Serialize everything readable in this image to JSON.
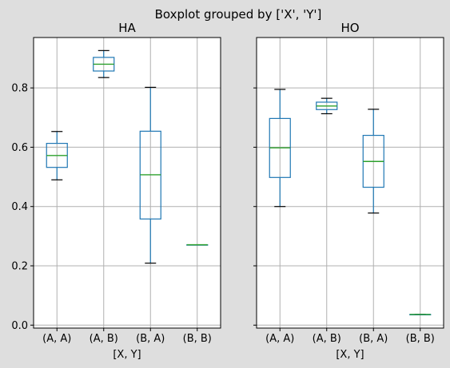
{
  "chart_data": {
    "type": "box",
    "suptitle": "Boxplot grouped by ['X', 'Y']",
    "ylim": [
      -0.01,
      0.97
    ],
    "yticks": [
      "0.0",
      "0.2",
      "0.4",
      "0.6",
      "0.8"
    ],
    "ytick_values": [
      0.0,
      0.2,
      0.4,
      0.6,
      0.8
    ],
    "grid": true,
    "shared_y": true,
    "colors": {
      "box": "#1f77b4",
      "median": "#2ca02c",
      "cap": "#000000",
      "grid": "#b0b0b0",
      "background": "#dedede",
      "axes": "#ffffff"
    },
    "panels": [
      {
        "title": "HA",
        "xlabel": "[X, Y]",
        "categories": [
          "(A, A)",
          "(A, B)",
          "(B, A)",
          "(B, B)"
        ],
        "boxes": [
          {
            "whislo": 0.49,
            "q1": 0.532,
            "med": 0.572,
            "q3": 0.613,
            "whishi": 0.653
          },
          {
            "whislo": 0.835,
            "q1": 0.857,
            "med": 0.88,
            "q3": 0.903,
            "whishi": 0.926
          },
          {
            "whislo": 0.209,
            "q1": 0.358,
            "med": 0.507,
            "q3": 0.654,
            "whishi": 0.802
          },
          {
            "whislo": 0.271,
            "q1": 0.271,
            "med": 0.271,
            "q3": 0.271,
            "whishi": 0.271
          }
        ]
      },
      {
        "title": "HO",
        "xlabel": "[X, Y]",
        "categories": [
          "(A, A)",
          "(A, B)",
          "(B, A)",
          "(B, B)"
        ],
        "boxes": [
          {
            "whislo": 0.4,
            "q1": 0.498,
            "med": 0.598,
            "q3": 0.697,
            "whishi": 0.795
          },
          {
            "whislo": 0.713,
            "q1": 0.727,
            "med": 0.739,
            "q3": 0.752,
            "whishi": 0.765
          },
          {
            "whislo": 0.378,
            "q1": 0.465,
            "med": 0.552,
            "q3": 0.64,
            "whishi": 0.728
          },
          {
            "whislo": 0.036,
            "q1": 0.036,
            "med": 0.036,
            "q3": 0.036,
            "whishi": 0.036
          }
        ]
      }
    ]
  }
}
